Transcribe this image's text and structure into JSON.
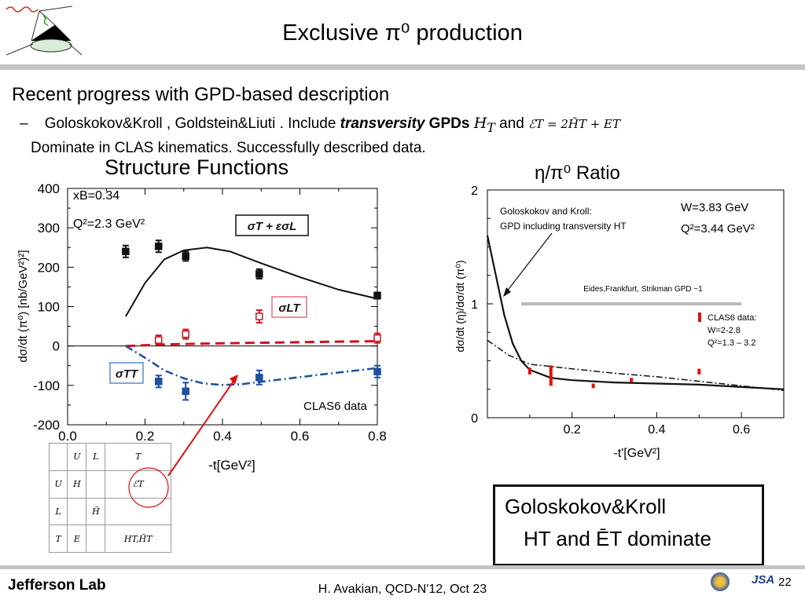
{
  "slide": {
    "title": "Exclusive π⁰ production",
    "heading": "Recent progress with GPD-based description",
    "bullet": {
      "dash": "–",
      "text1": "Goloskokov&Kroll ,   Goldstein&Liuti . Include ",
      "bold_italic": "transversity",
      "bold": " GPDs ",
      "ht": "H",
      "ht_sub": "T",
      "and": " and ",
      "formula": "ℰT = 2H̃T + ET",
      "line2": "Dominate in CLAS kinematics. Successfully described data."
    },
    "sf_title": "Structure Functions",
    "ratio_title": "η/π⁰  Ratio",
    "gk_box": {
      "line1": "Goloskokov&Kroll",
      "line2": "HT  and  ĒT dominate"
    },
    "footer": "H. Avakian, QCD-N'12,  Oct 23",
    "page_number": "22",
    "lab_name": "Jefferson Lab",
    "jsa": "JSA"
  },
  "gpd_table": {
    "rows": [
      [
        "",
        "U",
        "L",
        "T"
      ],
      [
        "U",
        "H",
        "",
        "ℰT"
      ],
      [
        "L",
        "",
        "H̃",
        ""
      ],
      [
        "T",
        "E",
        "",
        "HT,H̃T"
      ]
    ]
  },
  "colors": {
    "black": "#111111",
    "red": "#d01020",
    "blue": "#1f4fa0",
    "gray": "#bbbbbb",
    "arrow": "#e01010"
  },
  "chart_data": [
    {
      "type": "scatter",
      "xlim": [
        0.0,
        0.8
      ],
      "ylim": [
        -200,
        400
      ],
      "xticks": [
        "0.0",
        "0.2",
        "0.4",
        "0.6",
        "0.8"
      ],
      "yticks": [
        "400",
        "300",
        "200",
        "100",
        "0",
        "-100",
        "-200"
      ],
      "xlabel": "-t[GeV²]",
      "ylabel": "dσ/dt (π⁰)  [nb/GeV²)²]",
      "annotations": {
        "xb": "xB=0.34",
        "q2": "Q²=2.3 GeV²",
        "data_label": "CLAS6 data"
      },
      "series": [
        {
          "name": "σT + εσL",
          "color": "#111111",
          "marker": "filled-square",
          "x": [
            0.15,
            0.235,
            0.305,
            0.495,
            0.8
          ],
          "y": [
            240,
            253,
            228,
            183,
            128
          ],
          "err": [
            15,
            15,
            12,
            12,
            8
          ],
          "curve": [
            [
              0.15,
              75
            ],
            [
              0.2,
              160
            ],
            [
              0.25,
              220
            ],
            [
              0.3,
              243
            ],
            [
              0.36,
              250
            ],
            [
              0.42,
              240
            ],
            [
              0.5,
              210
            ],
            [
              0.6,
              175
            ],
            [
              0.7,
              143
            ],
            [
              0.8,
              120
            ]
          ]
        },
        {
          "name": "σLT",
          "color": "#d01020",
          "marker": "open-square",
          "x": [
            0.235,
            0.305,
            0.495,
            0.8
          ],
          "y": [
            15,
            30,
            75,
            20
          ],
          "err": [
            12,
            12,
            16,
            12
          ],
          "curve": [
            [
              0.15,
              0
            ],
            [
              0.25,
              4
            ],
            [
              0.4,
              7
            ],
            [
              0.55,
              9
            ],
            [
              0.7,
              11
            ],
            [
              0.8,
              12
            ]
          ]
        },
        {
          "name": "σTT",
          "color": "#1f4fa0",
          "marker": "filled-square",
          "x": [
            0.235,
            0.305,
            0.495,
            0.8
          ],
          "y": [
            -90,
            -115,
            -80,
            -65
          ],
          "err": [
            15,
            22,
            18,
            15
          ],
          "curve": [
            [
              0.15,
              0
            ],
            [
              0.2,
              -30
            ],
            [
              0.25,
              -62
            ],
            [
              0.3,
              -82
            ],
            [
              0.35,
              -95
            ],
            [
              0.4,
              -99
            ],
            [
              0.45,
              -97
            ],
            [
              0.55,
              -85
            ],
            [
              0.65,
              -73
            ],
            [
              0.8,
              -56
            ]
          ]
        }
      ]
    },
    {
      "type": "line",
      "xlim": [
        0.0,
        0.7
      ],
      "ylim": [
        0,
        2
      ],
      "xticks": [
        "0.2",
        "0.4",
        "0.6"
      ],
      "yticks": [
        "2",
        "1",
        "0"
      ],
      "xlabel": "-t'[GeV²]",
      "ylabel": "dσ/dt (η)/dσ/dt (π⁰)",
      "annotations": {
        "gk": [
          "Goloskokov and Kroll:",
          "GPD including transversity HT"
        ],
        "w": "W=3.83 GeV",
        "q2": "Q²=3.44 GeV²",
        "efs": "Eides,Frankfurt, Strikman GPD ~1",
        "clas_title": "CLAS6 data:",
        "clas_w": "W=2-2.8",
        "clas_q2": "Q²=1.3 – 3.2"
      },
      "efs_line": {
        "x": [
          0.08,
          0.6
        ],
        "y": 1.0
      },
      "gk_curve": [
        [
          0.0,
          1.6
        ],
        [
          0.02,
          1.25
        ],
        [
          0.04,
          0.9
        ],
        [
          0.06,
          0.65
        ],
        [
          0.08,
          0.5
        ],
        [
          0.1,
          0.42
        ],
        [
          0.15,
          0.35
        ],
        [
          0.2,
          0.33
        ],
        [
          0.3,
          0.31
        ],
        [
          0.4,
          0.3
        ],
        [
          0.5,
          0.29
        ],
        [
          0.6,
          0.27
        ],
        [
          0.7,
          0.25
        ]
      ],
      "dashdot_curve": [
        [
          0.0,
          0.68
        ],
        [
          0.05,
          0.55
        ],
        [
          0.1,
          0.47
        ],
        [
          0.2,
          0.43
        ],
        [
          0.3,
          0.39
        ],
        [
          0.4,
          0.36
        ],
        [
          0.5,
          0.32
        ],
        [
          0.6,
          0.28
        ],
        [
          0.7,
          0.24
        ]
      ],
      "data": [
        {
          "x": 0.1,
          "lo": 0.38,
          "hi": 0.44
        },
        {
          "x": 0.15,
          "lo": 0.28,
          "hi": 0.46
        },
        {
          "x": 0.25,
          "lo": 0.26,
          "hi": 0.3
        },
        {
          "x": 0.34,
          "lo": 0.31,
          "hi": 0.35
        },
        {
          "x": 0.5,
          "lo": 0.38,
          "hi": 0.43
        }
      ]
    }
  ]
}
